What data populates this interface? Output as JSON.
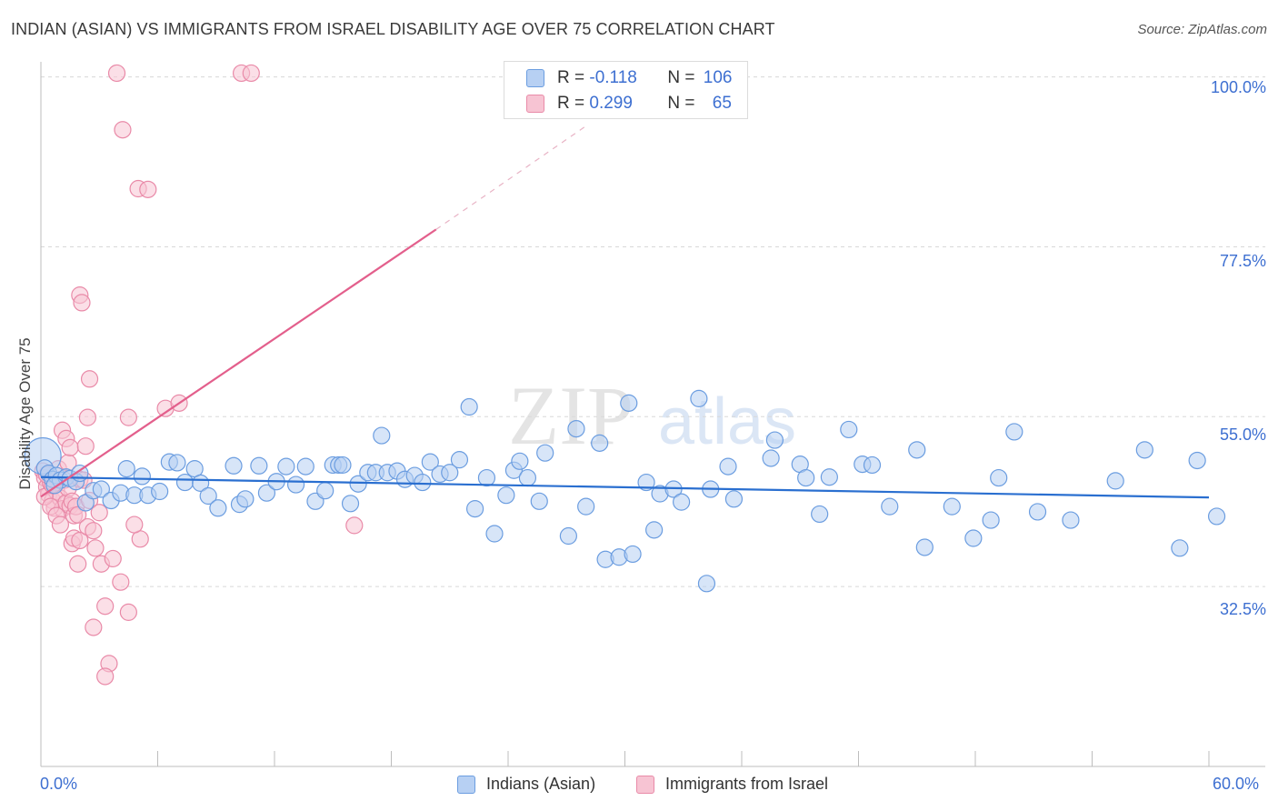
{
  "header": {
    "title": "INDIAN (ASIAN) VS IMMIGRANTS FROM ISRAEL DISABILITY AGE OVER 75 CORRELATION CHART",
    "source": "Source: ZipAtlas.com"
  },
  "watermark": {
    "zip": "ZIP",
    "atlas": "atlas"
  },
  "legend": {
    "rows": [
      {
        "r_label": "R = ",
        "r_value": "-0.118",
        "n_label": "N = ",
        "n_value": "106"
      },
      {
        "r_label": "R = ",
        "r_value": "0.299",
        "n_label": "N = ",
        "n_value": "65"
      }
    ]
  },
  "colors": {
    "blue_fill": "#b7d0f3",
    "blue_stroke": "#6b9de0",
    "blue_line": "#2a6fd0",
    "pink_fill": "#f7c4d3",
    "pink_stroke": "#e98aa8",
    "pink_line": "#e35f8c",
    "grid": "#d8d8d8",
    "axis": "#bdbdbd"
  },
  "chart_data": {
    "type": "scatter",
    "title": "INDIAN (ASIAN) VS IMMIGRANTS FROM ISRAEL DISABILITY AGE OVER 75 CORRELATION CHART",
    "xlabel": "",
    "ylabel": "Disability Age Over 75",
    "xlim": [
      0,
      60
    ],
    "ylim": [
      10,
      102
    ],
    "x_tick_labels": [
      "0.0%",
      "60.0%"
    ],
    "y_ticks": [
      32.5,
      55.0,
      77.5,
      100.0
    ],
    "y_tick_labels": [
      "32.5%",
      "55.0%",
      "77.5%",
      "100.0%"
    ],
    "grid": true,
    "legend_position": "bottom",
    "series": [
      {
        "name": "Indians (Asian)",
        "R": -0.118,
        "N": 106,
        "trend": {
          "x0": 0,
          "y0": 47.0,
          "x1": 60,
          "y1": 44.3
        },
        "points": [
          [
            0.1,
            49.8
          ],
          [
            0.2,
            48.2
          ],
          [
            0.4,
            47.5
          ],
          [
            0.6,
            46.7
          ],
          [
            0.8,
            47.2
          ],
          [
            1.0,
            46.6
          ],
          [
            1.3,
            47.0
          ],
          [
            1.5,
            46.8
          ],
          [
            1.8,
            46.4
          ],
          [
            2.0,
            47.5
          ],
          [
            2.3,
            43.6
          ],
          [
            2.7,
            45.2
          ],
          [
            3.1,
            45.4
          ],
          [
            3.6,
            43.9
          ],
          [
            4.1,
            44.9
          ],
          [
            4.4,
            48.1
          ],
          [
            4.8,
            44.6
          ],
          [
            5.2,
            47.1
          ],
          [
            5.5,
            44.6
          ],
          [
            6.1,
            45.1
          ],
          [
            6.6,
            49.0
          ],
          [
            7.0,
            48.9
          ],
          [
            7.4,
            46.3
          ],
          [
            7.9,
            48.1
          ],
          [
            8.2,
            46.2
          ],
          [
            8.6,
            44.5
          ],
          [
            9.1,
            42.9
          ],
          [
            9.9,
            48.5
          ],
          [
            10.2,
            43.4
          ],
          [
            10.5,
            44.1
          ],
          [
            11.2,
            48.5
          ],
          [
            11.6,
            44.9
          ],
          [
            12.1,
            46.4
          ],
          [
            12.6,
            48.4
          ],
          [
            13.1,
            46.0
          ],
          [
            13.6,
            48.4
          ],
          [
            14.1,
            43.8
          ],
          [
            14.6,
            45.2
          ],
          [
            15.0,
            48.6
          ],
          [
            15.3,
            48.6
          ],
          [
            15.5,
            48.6
          ],
          [
            15.9,
            43.5
          ],
          [
            16.3,
            46.1
          ],
          [
            16.8,
            47.6
          ],
          [
            17.2,
            47.6
          ],
          [
            17.5,
            52.5
          ],
          [
            17.8,
            47.6
          ],
          [
            18.3,
            47.8
          ],
          [
            18.7,
            46.7
          ],
          [
            19.2,
            47.2
          ],
          [
            19.6,
            46.3
          ],
          [
            20.0,
            49.0
          ],
          [
            20.5,
            47.4
          ],
          [
            21.0,
            47.6
          ],
          [
            21.5,
            49.3
          ],
          [
            22.0,
            56.3
          ],
          [
            22.3,
            42.8
          ],
          [
            22.9,
            46.9
          ],
          [
            23.3,
            39.5
          ],
          [
            23.9,
            44.6
          ],
          [
            24.3,
            47.9
          ],
          [
            24.6,
            49.1
          ],
          [
            25.0,
            46.9
          ],
          [
            25.6,
            43.8
          ],
          [
            25.9,
            50.2
          ],
          [
            27.1,
            39.2
          ],
          [
            27.5,
            53.4
          ],
          [
            28.0,
            43.1
          ],
          [
            28.7,
            51.5
          ],
          [
            29.0,
            36.1
          ],
          [
            29.7,
            36.4
          ],
          [
            30.2,
            56.8
          ],
          [
            30.4,
            36.8
          ],
          [
            31.1,
            46.3
          ],
          [
            31.5,
            40.0
          ],
          [
            31.8,
            44.8
          ],
          [
            32.5,
            45.4
          ],
          [
            32.9,
            43.7
          ],
          [
            33.8,
            57.4
          ],
          [
            34.2,
            32.9
          ],
          [
            34.4,
            45.4
          ],
          [
            35.3,
            48.4
          ],
          [
            35.6,
            44.1
          ],
          [
            37.5,
            49.5
          ],
          [
            37.7,
            51.9
          ],
          [
            39.0,
            48.7
          ],
          [
            39.3,
            46.9
          ],
          [
            40.0,
            42.1
          ],
          [
            40.5,
            47.0
          ],
          [
            41.5,
            53.3
          ],
          [
            42.2,
            48.7
          ],
          [
            42.7,
            48.6
          ],
          [
            43.6,
            43.1
          ],
          [
            45.0,
            50.6
          ],
          [
            45.4,
            37.7
          ],
          [
            46.8,
            43.1
          ],
          [
            47.9,
            38.9
          ],
          [
            48.8,
            41.3
          ],
          [
            49.2,
            46.9
          ],
          [
            50.0,
            53.0
          ],
          [
            51.2,
            42.4
          ],
          [
            52.9,
            41.3
          ],
          [
            55.2,
            46.5
          ],
          [
            56.7,
            50.6
          ],
          [
            58.5,
            37.6
          ],
          [
            59.4,
            49.2
          ],
          [
            60.4,
            41.8
          ],
          [
            0.7,
            45.9
          ]
        ]
      },
      {
        "name": "Immigrants from Israel",
        "R": 0.299,
        "N": 65,
        "trend": {
          "x0": 0,
          "y0": 44.4,
          "x1": 20.3,
          "y1": 79.8,
          "dash_to_x": 28.0,
          "dash_to_y": 93.5
        },
        "points": [
          [
            0.1,
            47.8
          ],
          [
            0.2,
            46.9
          ],
          [
            0.3,
            45.7
          ],
          [
            0.4,
            44.7
          ],
          [
            0.5,
            46.2
          ],
          [
            0.6,
            43.9
          ],
          [
            0.7,
            42.9
          ],
          [
            0.8,
            45.1
          ],
          [
            0.9,
            48.1
          ],
          [
            1.0,
            44.2
          ],
          [
            1.1,
            42.8
          ],
          [
            1.2,
            46.6
          ],
          [
            1.3,
            43.6
          ],
          [
            1.4,
            45.5
          ],
          [
            1.5,
            43.2
          ],
          [
            1.6,
            43.8
          ],
          [
            1.7,
            41.9
          ],
          [
            1.8,
            43.1
          ],
          [
            1.9,
            42.0
          ],
          [
            2.0,
            46.7
          ],
          [
            0.2,
            44.4
          ],
          [
            0.3,
            47.3
          ],
          [
            0.5,
            43.1
          ],
          [
            0.6,
            45.9
          ],
          [
            0.8,
            41.9
          ],
          [
            1.0,
            40.7
          ],
          [
            1.1,
            53.2
          ],
          [
            1.3,
            52.1
          ],
          [
            1.4,
            48.9
          ],
          [
            1.5,
            50.9
          ],
          [
            1.6,
            38.2
          ],
          [
            1.7,
            38.9
          ],
          [
            1.9,
            35.5
          ],
          [
            2.0,
            38.6
          ],
          [
            2.2,
            46.6
          ],
          [
            2.3,
            51.1
          ],
          [
            2.4,
            40.4
          ],
          [
            2.5,
            43.9
          ],
          [
            2.7,
            39.9
          ],
          [
            2.8,
            37.6
          ],
          [
            3.0,
            42.3
          ],
          [
            3.1,
            35.5
          ],
          [
            3.3,
            29.9
          ],
          [
            3.5,
            22.3
          ],
          [
            3.7,
            36.2
          ],
          [
            4.1,
            33.1
          ],
          [
            4.5,
            29.1
          ],
          [
            5.1,
            38.8
          ],
          [
            6.4,
            56.1
          ],
          [
            7.1,
            56.8
          ],
          [
            2.0,
            71.1
          ],
          [
            2.1,
            70.1
          ],
          [
            2.5,
            60.0
          ],
          [
            2.4,
            54.9
          ],
          [
            2.7,
            27.1
          ],
          [
            3.3,
            20.6
          ],
          [
            4.5,
            54.9
          ],
          [
            4.8,
            40.7
          ],
          [
            5.0,
            85.2
          ],
          [
            5.5,
            85.1
          ],
          [
            4.2,
            93.0
          ],
          [
            3.9,
            100.5
          ],
          [
            10.3,
            100.5
          ],
          [
            10.8,
            100.5
          ],
          [
            16.1,
            40.6
          ]
        ]
      }
    ]
  },
  "bottom_legend": {
    "items": [
      "Indians (Asian)",
      "Immigrants from Israel"
    ]
  }
}
